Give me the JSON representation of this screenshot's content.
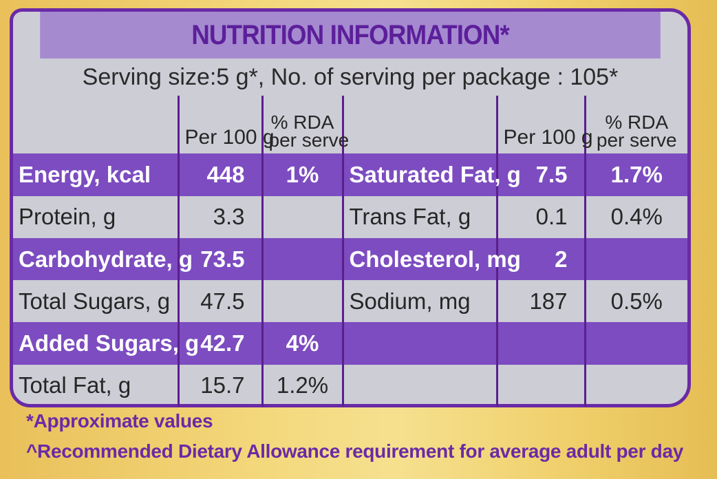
{
  "panel": {
    "title": "NUTRITION INFORMATION*",
    "serving": "Serving size:5 g*, No. of serving per package : 105*"
  },
  "headers": {
    "per100": "Per 100 g",
    "rda_line1": "% RDA",
    "rda_line2": "per serve"
  },
  "rows": [
    {
      "left_name": "Energy, kcal",
      "left_val": "448",
      "left_rda": "1%",
      "right_name": "Saturated Fat, g",
      "right_val": "7.5",
      "right_rda": "1.7%"
    },
    {
      "left_name": "Protein, g",
      "left_val": "3.3",
      "left_rda": "",
      "right_name": "Trans Fat, g",
      "right_val": "0.1",
      "right_rda": "0.4%"
    },
    {
      "left_name": "Carbohydrate, g",
      "left_val": "73.5",
      "left_rda": "",
      "right_name": "Cholesterol, mg",
      "right_val": "2",
      "right_rda": ""
    },
    {
      "left_name": "Total Sugars, g",
      "left_val": "47.5",
      "left_rda": "",
      "right_name": "Sodium, mg",
      "right_val": "187",
      "right_rda": "0.5%"
    },
    {
      "left_name": "Added Sugars, g",
      "left_val": "42.7",
      "left_rda": "4%",
      "right_name": "",
      "right_val": "",
      "right_rda": ""
    },
    {
      "left_name": "Total Fat, g",
      "left_val": "15.7",
      "left_rda": "1.2%",
      "right_name": "",
      "right_val": "",
      "right_rda": ""
    }
  ],
  "footnotes": {
    "approx": "*Approximate values",
    "rda": "^Recommended Dietary Allowance requirement for average adult per day"
  },
  "colors": {
    "purple_dark": "#6a2aa6",
    "purple_highlight": "#7c4cc0",
    "panel_gray": "#cdcdd6",
    "background_gold": "#f3d77a"
  }
}
